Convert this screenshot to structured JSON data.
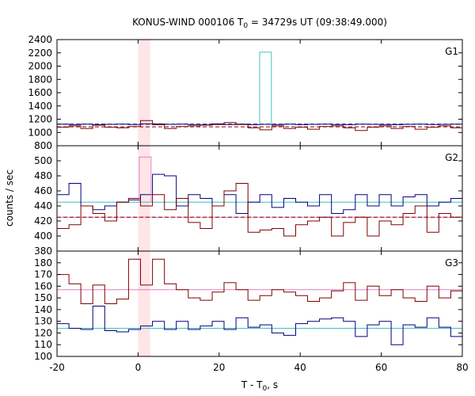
{
  "chart_data": {
    "type": "line",
    "title": "KONUS-WIND 000106 T",
    "title_sub": "0",
    "title_rest": " = 34729s UT (09:38:49.000)",
    "xlabel": "T - T",
    "xlabel_sub": "0",
    "xlabel_rest": ", s",
    "ylabel": "counts / sec",
    "xlim": [
      -20,
      80
    ],
    "x_ticks": [
      "-20",
      "0",
      "20",
      "40",
      "60",
      "80"
    ],
    "highlight_x": [
      0,
      3
    ],
    "panels": [
      {
        "label": "G1",
        "ylim": [
          800,
          2400
        ],
        "y_ticks": [
          "800",
          "1000",
          "1200",
          "1400",
          "1600",
          "1800",
          "2000",
          "2200",
          "2400"
        ],
        "background_levels": [
          {
            "name": "bg-blue",
            "value": 1125,
            "color": "#000080",
            "dashed": true
          },
          {
            "name": "bg-red",
            "value": 1085,
            "color": "#800000",
            "dashed": true
          }
        ],
        "series": [
          {
            "color": "#000080",
            "x_start": -20,
            "step": 2.944,
            "values": [
              1125,
              1120,
              1125,
              1118,
              1122,
              1125,
              1120,
              1130,
              1118,
              1122,
              1125,
              1120,
              1115,
              1130,
              1120,
              1125,
              1118,
              1122,
              1120,
              1125,
              1118,
              1122,
              1125,
              1120,
              1118,
              1125,
              1122,
              1120,
              1118,
              1122,
              1125,
              1120,
              1122,
              1125
            ]
          },
          {
            "color": "#800000",
            "x_start": -20,
            "step": 2.944,
            "values": [
              1080,
              1100,
              1060,
              1110,
              1080,
              1070,
              1090,
              1180,
              1130,
              1060,
              1090,
              1100,
              1110,
              1120,
              1150,
              1120,
              1070,
              1040,
              1100,
              1060,
              1080,
              1050,
              1090,
              1100,
              1070,
              1030,
              1080,
              1100,
              1060,
              1090,
              1050,
              1080,
              1100,
              1070
            ]
          },
          {
            "color": "#40c0c0",
            "x_start": 30,
            "step": 2.9,
            "values": [
              2210
            ]
          }
        ]
      },
      {
        "label": "G2",
        "ylim": [
          380,
          520
        ],
        "y_ticks": [
          "380",
          "400",
          "420",
          "440",
          "460",
          "480",
          "500"
        ],
        "background_levels": [
          {
            "name": "bg-cyan",
            "value": 445,
            "color": "#40c0c0",
            "dashed": false
          },
          {
            "name": "bg-pink",
            "value": 425,
            "color": "#e080c0",
            "dashed": false
          },
          {
            "name": "bg-red",
            "value": 425,
            "color": "#800000",
            "dashed": true
          }
        ],
        "series": [
          {
            "color": "#000080",
            "x_start": -20,
            "step": 2.944,
            "values": [
              455,
              470,
              440,
              435,
              440,
              445,
              448,
              455,
              482,
              480,
              440,
              455,
              450,
              440,
              455,
              430,
              445,
              455,
              438,
              450,
              445,
              440,
              455,
              430,
              435,
              455,
              440,
              455,
              440,
              452,
              455,
              440,
              445,
              450
            ]
          },
          {
            "color": "#800000",
            "x_start": -20,
            "step": 2.944,
            "values": [
              410,
              415,
              440,
              430,
              420,
              445,
              450,
              440,
              455,
              435,
              450,
              418,
              410,
              440,
              460,
              470,
              405,
              408,
              410,
              400,
              415,
              420,
              425,
              400,
              418,
              425,
              400,
              420,
              415,
              430,
              440,
              405,
              430,
              425
            ]
          },
          {
            "color": "#e080c0",
            "x_start": 0.3,
            "step": 2.9,
            "values": [
              505
            ]
          }
        ]
      },
      {
        "label": "G3",
        "ylim": [
          100,
          190
        ],
        "y_ticks": [
          "100",
          "110",
          "120",
          "130",
          "140",
          "150",
          "160",
          "170",
          "180"
        ],
        "background_levels": [
          {
            "name": "bg-pink",
            "value": 157,
            "color": "#e080c0",
            "dashed": false
          },
          {
            "name": "bg-cyan",
            "value": 124,
            "color": "#40c0c0",
            "dashed": false
          }
        ],
        "series": [
          {
            "color": "#000080",
            "x_start": -20,
            "step": 2.944,
            "values": [
              128,
              124,
              123,
              143,
              122,
              121,
              123,
              126,
              130,
              123,
              130,
              123,
              126,
              130,
              123,
              133,
              125,
              127,
              120,
              118,
              128,
              130,
              132,
              133,
              130,
              117,
              127,
              130,
              110,
              127,
              125,
              133,
              125,
              117
            ]
          },
          {
            "color": "#800000",
            "x_start": -20,
            "step": 2.944,
            "values": [
              170,
              162,
              145,
              161,
              145,
              149,
              183,
              161,
              183,
              162,
              157,
              150,
              148,
              155,
              163,
              157,
              148,
              152,
              157,
              155,
              152,
              147,
              150,
              156,
              163,
              148,
              160,
              152,
              157,
              150,
              147,
              160,
              150,
              156
            ]
          }
        ]
      }
    ]
  }
}
